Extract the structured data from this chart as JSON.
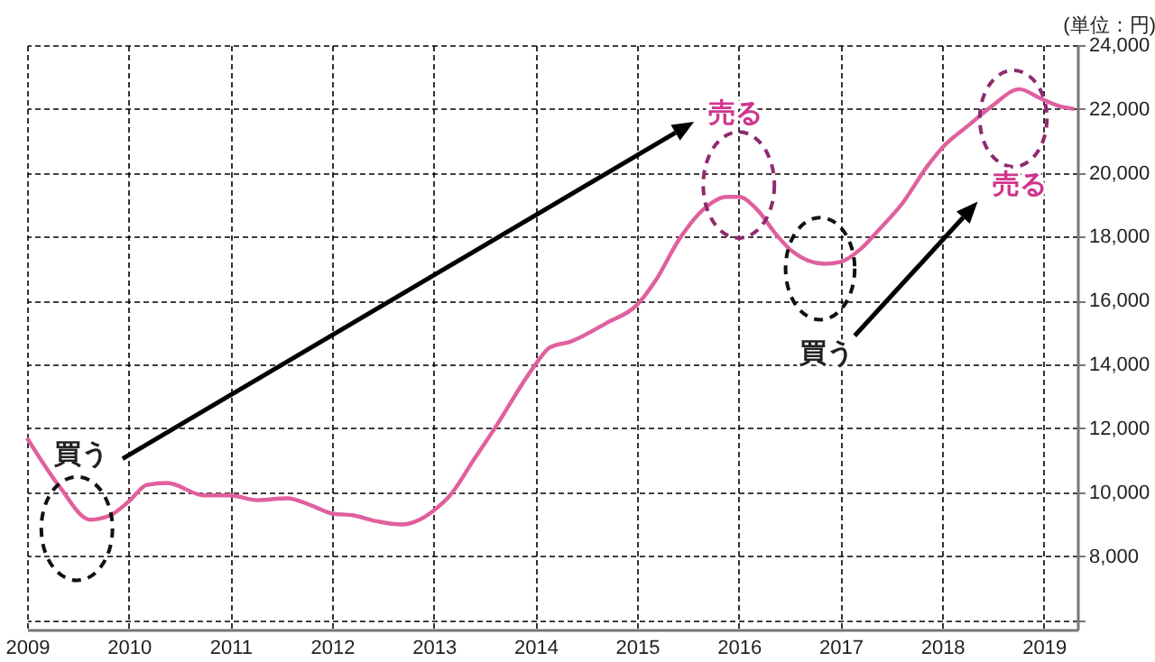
{
  "chart_data": {
    "type": "line",
    "x": [
      2009.0,
      2009.32,
      2009.62,
      2009.82,
      2010.0,
      2010.18,
      2010.38,
      2010.74,
      2011.0,
      2011.26,
      2011.56,
      2011.8,
      2012.0,
      2012.2,
      2012.44,
      2012.68,
      2012.86,
      2013.0,
      2013.16,
      2013.4,
      2013.63,
      2013.87,
      2014.0,
      2014.14,
      2014.35,
      2014.7,
      2015.0,
      2015.18,
      2015.41,
      2015.65,
      2015.88,
      2016.0,
      2016.18,
      2016.36,
      2016.53,
      2016.84,
      2017.0,
      2017.2,
      2017.37,
      2017.61,
      2017.85,
      2018.02,
      2018.26,
      2018.49,
      2018.76,
      2018.96,
      2019.15,
      2019.3
    ],
    "series": [
      {
        "color": "#e0609e",
        "values": [
          11700,
          10170,
          9140,
          9280,
          9710,
          10230,
          10290,
          9900,
          9900,
          9750,
          9810,
          9580,
          9330,
          9280,
          9090,
          8990,
          9140,
          9430,
          9900,
          11050,
          12150,
          13390,
          14000,
          14530,
          14720,
          15300,
          15870,
          16620,
          17900,
          18850,
          19250,
          19250,
          18850,
          18100,
          17530,
          17150,
          17210,
          17620,
          18190,
          19050,
          20190,
          20850,
          21490,
          22090,
          22620,
          22340,
          22090,
          22000
        ]
      }
    ],
    "xlim": [
      2009,
      2019.33
    ],
    "xticks": [
      2009,
      2010,
      2011,
      2012,
      2013,
      2014,
      2015,
      2016,
      2017,
      2018,
      2019
    ],
    "ylim": [
      5700,
      24000
    ],
    "yticks": [
      {
        "value": 6000,
        "label": null
      },
      {
        "value": 8000,
        "label": "8,000"
      },
      {
        "value": 10000,
        "label": "10,000"
      },
      {
        "value": 12000,
        "label": "12,000"
      },
      {
        "value": 14000,
        "label": "14,000"
      },
      {
        "value": 16000,
        "label": "16,000"
      },
      {
        "value": 18000,
        "label": "18,000"
      },
      {
        "value": 20000,
        "label": "20,000"
      },
      {
        "value": 22000,
        "label": "22,000"
      },
      {
        "value": 24000,
        "label": "24,000"
      }
    ],
    "grid": true,
    "annotations": [
      "(単位：円)",
      "買う",
      "売る",
      "買う",
      "売る"
    ]
  }
}
